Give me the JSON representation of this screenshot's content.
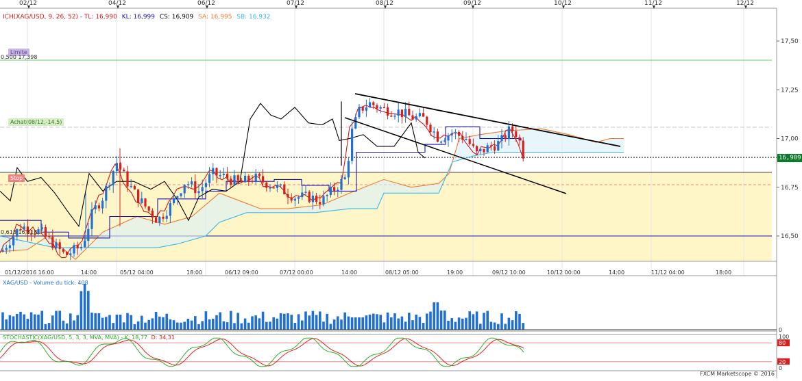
{
  "top_dates": [
    "02/12",
    "04/12",
    "06/12",
    "07/12",
    "08/12",
    "09/12",
    "10/12",
    "11/12",
    "12/12"
  ],
  "main_header": {
    "ichimoku": "ICH(XAG/USD, 9, 26, 52)",
    "tl": "TL: 16,990",
    "kl": "KL: 16,999",
    "cs": "CS: 16,909",
    "sa": "SA: 16,995",
    "sb": "SB: 16,932"
  },
  "price_axis": [
    "17,50",
    "17,25",
    "17,00",
    "16,75",
    "16,50"
  ],
  "current_price": "16,909",
  "tags": {
    "limite": "Limite",
    "limite_price": "0,500 17,398",
    "achat": "Achat(08/12,-14,5)",
    "stop": "Stop",
    "fib_618": "0,618 16,518"
  },
  "time_axis": [
    "01/12/2016 16:00",
    "14:00",
    "05/12 04:00",
    "18:00",
    "06/12 09:00",
    "07/12 00:00",
    "14:00",
    "08/12 05:00",
    "19:00",
    "09/12 10:00",
    "10/12 00:00",
    "14:00",
    "11/12 04:00",
    "18:00"
  ],
  "volume": {
    "header": "XAG/USD - Volume du tick: 408",
    "axis_zero": "0"
  },
  "stochastic": {
    "header_main": "STOCHASTIC(XAG/USD, 5, 3, 3, MVA, MVA) - K: 18,77",
    "header_d": "D: 34,31",
    "levels": [
      "100",
      "80",
      "20",
      "0"
    ]
  },
  "footer": "FXCM Marketscope © 2016",
  "colors": {
    "bull": "#1f6fd6",
    "bear": "#d62020",
    "tenkan": "#d01818",
    "kijun": "#1414b4",
    "senkou_a": "#f07a30",
    "senkou_b": "#38b6ea",
    "chikou": "#000000",
    "stop_zone": "#fff6c8",
    "limit_line": "#5bd25b",
    "stoch_k": "#2ab02a",
    "stoch_d": "#e02020"
  }
}
